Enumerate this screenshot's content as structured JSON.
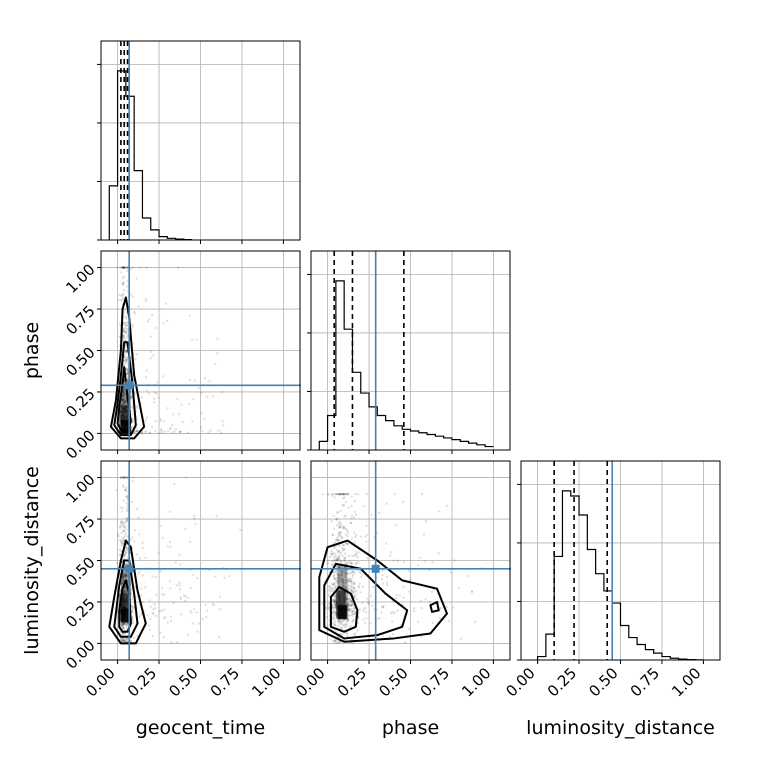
{
  "chart_data": {
    "type": "corner",
    "parameters": [
      "geocent_time",
      "phase",
      "luminosity_distance"
    ],
    "axis_range": [
      -0.1,
      1.1
    ],
    "tick_values": [
      0.0,
      0.25,
      0.5,
      0.75,
      1.0
    ],
    "tick_labels": [
      "0.00",
      "0.25",
      "0.50",
      "0.75",
      "1.00"
    ],
    "grid": true,
    "truths": {
      "geocent_time": 0.07,
      "phase": 0.29,
      "luminosity_distance": 0.45
    },
    "truth_color": "#4682b4",
    "quantiles": {
      "geocent_time": [
        0.02,
        0.04,
        0.06
      ],
      "phase": [
        0.04,
        0.15,
        0.46
      ],
      "luminosity_distance": [
        0.1,
        0.22,
        0.42
      ]
    },
    "histograms": [
      {
        "parameter": "geocent_time",
        "bin_edges": [
          -0.05,
          0.0,
          0.05,
          0.1,
          0.15,
          0.2,
          0.25,
          0.3,
          0.35,
          0.4,
          0.45
        ],
        "counts": [
          0.32,
          1.0,
          0.85,
          0.41,
          0.13,
          0.06,
          0.02,
          0.01,
          0.005,
          0.002
        ]
      },
      {
        "parameter": "phase",
        "bin_edges": [
          -0.05,
          0.0,
          0.05,
          0.1,
          0.15,
          0.2,
          0.25,
          0.3,
          0.35,
          0.4,
          0.45,
          0.5,
          0.55,
          0.6,
          0.65,
          0.7,
          0.75,
          0.8,
          0.85,
          0.9,
          0.95,
          1.0
        ],
        "counts": [
          0.05,
          0.2,
          0.98,
          0.7,
          0.45,
          0.33,
          0.25,
          0.2,
          0.17,
          0.14,
          0.12,
          0.11,
          0.1,
          0.09,
          0.08,
          0.07,
          0.06,
          0.05,
          0.04,
          0.03,
          0.02
        ]
      },
      {
        "parameter": "luminosity_distance",
        "bin_edges": [
          0.0,
          0.05,
          0.1,
          0.15,
          0.2,
          0.25,
          0.3,
          0.35,
          0.4,
          0.45,
          0.5,
          0.55,
          0.6,
          0.65,
          0.7,
          0.75,
          0.8,
          0.85,
          0.9,
          0.95,
          1.0
        ],
        "counts": [
          0.02,
          0.15,
          0.6,
          0.98,
          0.95,
          0.84,
          0.64,
          0.5,
          0.4,
          0.33,
          0.2,
          0.13,
          0.09,
          0.06,
          0.04,
          0.02,
          0.01,
          0.005,
          0.002,
          0.001
        ]
      }
    ],
    "pairs": [
      {
        "x": "geocent_time",
        "y": "phase",
        "samples": {
          "x_center": 0.04,
          "x_spread": 0.025,
          "x_tail": 0.06,
          "x_max": 0.75,
          "y_min": 0.0,
          "y_max": 1.0,
          "y_mode": 0.05,
          "y_decay": 0.28
        },
        "contours": [
          [
            [
              0.0,
              0.06
            ],
            [
              0.02,
              0.02
            ],
            [
              0.06,
              0.02
            ],
            [
              0.08,
              0.07
            ],
            [
              0.06,
              0.22
            ],
            [
              0.04,
              0.4
            ],
            [
              0.03,
              0.3
            ],
            [
              0.01,
              0.16
            ]
          ],
          [
            [
              -0.02,
              0.05
            ],
            [
              0.02,
              -0.01
            ],
            [
              0.08,
              -0.01
            ],
            [
              0.11,
              0.05
            ],
            [
              0.09,
              0.3
            ],
            [
              0.06,
              0.55
            ],
            [
              0.04,
              0.55
            ],
            [
              0.02,
              0.35
            ],
            [
              0.0,
              0.18
            ]
          ],
          [
            [
              -0.04,
              0.04
            ],
            [
              0.02,
              -0.03
            ],
            [
              0.1,
              -0.03
            ],
            [
              0.16,
              0.04
            ],
            [
              0.1,
              0.35
            ],
            [
              0.07,
              0.7
            ],
            [
              0.05,
              0.82
            ],
            [
              0.03,
              0.75
            ],
            [
              0.02,
              0.5
            ],
            [
              -0.01,
              0.2
            ]
          ]
        ]
      },
      {
        "x": "geocent_time",
        "y": "luminosity_distance",
        "samples": {
          "x_center": 0.04,
          "x_spread": 0.025,
          "x_tail": 0.06,
          "x_max": 0.75,
          "y_min": 0.0,
          "y_max": 1.0,
          "y_mode": 0.18,
          "y_decay": 0.22
        },
        "contours": [
          [
            [
              0.01,
              0.1
            ],
            [
              0.03,
              0.07
            ],
            [
              0.06,
              0.07
            ],
            [
              0.08,
              0.12
            ],
            [
              0.07,
              0.3
            ],
            [
              0.05,
              0.38
            ],
            [
              0.03,
              0.33
            ],
            [
              0.01,
              0.2
            ]
          ],
          [
            [
              -0.02,
              0.1
            ],
            [
              0.02,
              0.04
            ],
            [
              0.08,
              0.04
            ],
            [
              0.12,
              0.12
            ],
            [
              0.1,
              0.3
            ],
            [
              0.07,
              0.5
            ],
            [
              0.04,
              0.5
            ],
            [
              0.01,
              0.35
            ]
          ],
          [
            [
              -0.05,
              0.1
            ],
            [
              0.02,
              0.0
            ],
            [
              0.11,
              0.0
            ],
            [
              0.17,
              0.12
            ],
            [
              0.12,
              0.32
            ],
            [
              0.08,
              0.58
            ],
            [
              0.05,
              0.62
            ],
            [
              0.02,
              0.5
            ],
            [
              -0.02,
              0.28
            ]
          ]
        ]
      },
      {
        "x": "phase",
        "y": "luminosity_distance",
        "samples": {
          "x_center": 0.08,
          "x_spread": 0.06,
          "x_tail": 0.3,
          "x_max": 1.0,
          "y_min": 0.0,
          "y_max": 0.9,
          "y_mode": 0.2,
          "y_decay": 0.22
        },
        "contours": [
          [
            [
              0.02,
              0.1
            ],
            [
              0.1,
              0.07
            ],
            [
              0.17,
              0.1
            ],
            [
              0.18,
              0.2
            ],
            [
              0.14,
              0.3
            ],
            [
              0.07,
              0.34
            ],
            [
              0.02,
              0.28
            ]
          ],
          [
            [
              -0.02,
              0.1
            ],
            [
              0.1,
              0.03
            ],
            [
              0.3,
              0.05
            ],
            [
              0.45,
              0.1
            ],
            [
              0.48,
              0.2
            ],
            [
              0.35,
              0.3
            ],
            [
              0.2,
              0.45
            ],
            [
              0.05,
              0.48
            ],
            [
              -0.02,
              0.35
            ]
          ],
          [
            [
              -0.05,
              0.08
            ],
            [
              0.1,
              0.01
            ],
            [
              0.4,
              0.03
            ],
            [
              0.62,
              0.06
            ],
            [
              0.72,
              0.18
            ],
            [
              0.66,
              0.33
            ],
            [
              0.45,
              0.38
            ],
            [
              0.3,
              0.5
            ],
            [
              0.12,
              0.62
            ],
            [
              0.0,
              0.58
            ],
            [
              -0.05,
              0.4
            ]
          ],
          [
            [
              0.62,
              0.23
            ],
            [
              0.66,
              0.25
            ],
            [
              0.67,
              0.2
            ],
            [
              0.63,
              0.19
            ]
          ]
        ]
      }
    ]
  }
}
